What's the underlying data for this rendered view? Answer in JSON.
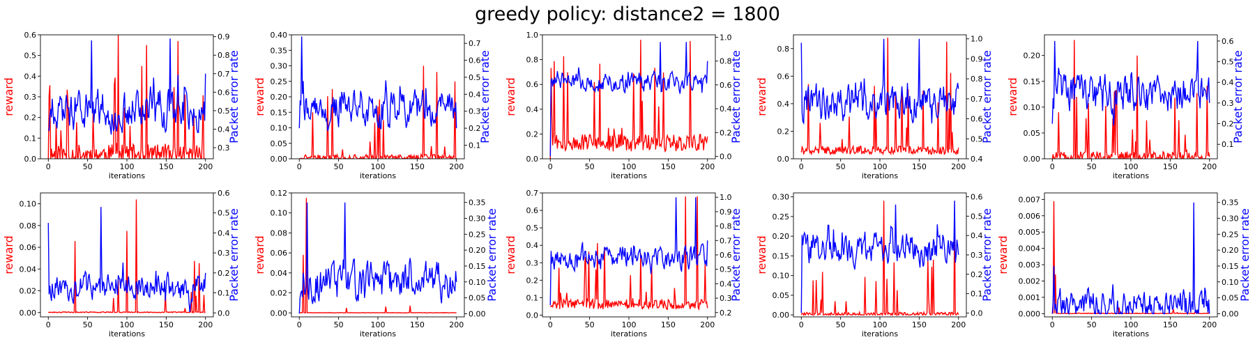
{
  "figure": {
    "title": "greedy policy: distance2 = 1800",
    "reward_color": "#ff0000",
    "per_color": "#0000ff"
  },
  "chart_data": [
    {
      "type": "line",
      "xlabel": "iterations",
      "ylabel_left": "reward",
      "ylabel_right": "Packet error rate",
      "xlim": [
        0,
        200
      ],
      "x_ticks": [
        0,
        50,
        100,
        150,
        200
      ],
      "ylim_left": [
        0,
        0.6
      ],
      "y_ticks_left": [
        0.0,
        0.1,
        0.2,
        0.3,
        0.4,
        0.5,
        0.6
      ],
      "y_tick_labels_left": [
        "0.0",
        "0.1",
        "0.2",
        "0.3",
        "0.4",
        "0.5",
        "0.6"
      ],
      "ylim_right": [
        0.24,
        0.91
      ],
      "y_ticks_right": [
        0.3,
        0.4,
        0.5,
        0.6,
        0.7,
        0.8,
        0.9
      ],
      "y_tick_labels_right": [
        "0.3",
        "0.4",
        "0.5",
        "0.6",
        "0.7",
        "0.8",
        "0.9"
      ],
      "reward": {
        "seed": 11,
        "base": 0.0,
        "noise": 0.1,
        "spike_prob": 0.1,
        "spike_max": 0.42,
        "max": 0.6,
        "peaks": [
          [
            89,
            0.6
          ],
          [
            125,
            0.55
          ],
          [
            165,
            0.57
          ]
        ]
      },
      "per": {
        "seed": 12,
        "base": 0.5,
        "noise": 0.16,
        "min": 0.24,
        "max": 0.9,
        "peaks": [
          [
            55,
            0.88
          ],
          [
            155,
            0.89
          ]
        ],
        "start": 0.4,
        "end": 0.7
      }
    },
    {
      "type": "line",
      "xlabel": "iterations",
      "ylabel_left": "reward",
      "ylabel_right": "Packet error rate",
      "xlim": [
        0,
        200
      ],
      "x_ticks": [
        0,
        50,
        100,
        150,
        200
      ],
      "ylim_left": [
        0,
        0.4
      ],
      "y_ticks_left": [
        0.0,
        0.05,
        0.1,
        0.15,
        0.2,
        0.25,
        0.3,
        0.35,
        0.4
      ],
      "y_tick_labels_left": [
        "0.00",
        "0.05",
        "0.10",
        "0.15",
        "0.20",
        "0.25",
        "0.30",
        "0.35",
        "0.40"
      ],
      "ylim_right": [
        0.02,
        0.75
      ],
      "y_ticks_right": [
        0.1,
        0.2,
        0.3,
        0.4,
        0.5,
        0.6,
        0.7
      ],
      "y_tick_labels_right": [
        "0.1",
        "0.2",
        "0.3",
        "0.4",
        "0.5",
        "0.6",
        "0.7"
      ],
      "reward": {
        "seed": 21,
        "base": 0.0,
        "noise": 0.02,
        "spike_prob": 0.08,
        "spike_max": 0.25,
        "max": 0.4,
        "peaks": [
          [
            158,
            0.3
          ],
          [
            175,
            0.28
          ]
        ]
      },
      "per": {
        "seed": 22,
        "base": 0.32,
        "noise": 0.15,
        "min": 0.02,
        "max": 0.75,
        "peaks": [
          [
            3,
            0.74
          ]
        ],
        "start": 0.2,
        "end": 0.2
      }
    },
    {
      "type": "line",
      "xlabel": "iterations",
      "ylabel_left": "reward",
      "ylabel_right": "Packet error rate",
      "xlim": [
        0,
        200
      ],
      "x_ticks": [
        0,
        50,
        100,
        150,
        200
      ],
      "ylim_left": [
        0,
        1.0
      ],
      "y_ticks_left": [
        0.0,
        0.2,
        0.4,
        0.6,
        0.8,
        1.0
      ],
      "y_tick_labels_left": [
        "0.0",
        "0.2",
        "0.4",
        "0.6",
        "0.8",
        "1.0"
      ],
      "ylim_right": [
        -0.02,
        1.02
      ],
      "y_ticks_right": [
        0.0,
        0.2,
        0.4,
        0.6,
        0.8,
        1.0
      ],
      "y_tick_labels_right": [
        "0.0",
        "0.2",
        "0.4",
        "0.6",
        "0.8",
        "1.0"
      ],
      "reward": {
        "seed": 31,
        "base": 0.1,
        "noise": 0.14,
        "spike_prob": 0.12,
        "spike_max": 0.7,
        "max": 0.96,
        "peaks": [
          [
            115,
            0.96
          ],
          [
            178,
            0.95
          ]
        ],
        "start": 0.0
      },
      "per": {
        "seed": 32,
        "base": 0.62,
        "noise": 0.12,
        "min": 0.0,
        "max": 0.96,
        "peaks": [
          [
            140,
            0.96
          ],
          [
            173,
            0.96
          ]
        ],
        "start": 0.0,
        "end": 0.8
      }
    },
    {
      "type": "line",
      "xlabel": "iterations",
      "ylabel_left": "reward",
      "ylabel_right": "Packet error rate",
      "xlim": [
        0,
        200
      ],
      "x_ticks": [
        0,
        50,
        100,
        150,
        200
      ],
      "ylim_left": [
        0,
        0.9
      ],
      "y_ticks_left": [
        0.0,
        0.2,
        0.4,
        0.6,
        0.8
      ],
      "y_tick_labels_left": [
        "0.0",
        "0.2",
        "0.4",
        "0.6",
        "0.8"
      ],
      "ylim_right": [
        0.4,
        1.02
      ],
      "y_ticks_right": [
        0.4,
        0.5,
        0.6,
        0.7,
        0.8,
        0.9,
        1.0
      ],
      "y_tick_labels_right": [
        "0.4",
        "0.5",
        "0.6",
        "0.7",
        "0.8",
        "0.9",
        "1.0"
      ],
      "reward": {
        "seed": 41,
        "base": 0.05,
        "noise": 0.06,
        "spike_prob": 0.1,
        "spike_max": 0.55,
        "max": 0.88,
        "peaks": [
          [
            110,
            0.88
          ],
          [
            185,
            0.85
          ]
        ]
      },
      "per": {
        "seed": 42,
        "base": 0.68,
        "noise": 0.14,
        "min": 0.45,
        "max": 1.0,
        "peaks": [
          [
            0,
            0.98
          ],
          [
            105,
            1.0
          ],
          [
            150,
            1.0
          ]
        ],
        "start": 0.98,
        "end": 0.75
      }
    },
    {
      "type": "line",
      "xlabel": "iterations",
      "ylabel_left": "reward",
      "ylabel_right": "Packet error rate",
      "xlim": [
        0,
        200
      ],
      "x_ticks": [
        0,
        50,
        100,
        150,
        200
      ],
      "ylim_left": [
        0,
        0.24
      ],
      "y_ticks_left": [
        0.0,
        0.05,
        0.1,
        0.15,
        0.2
      ],
      "y_tick_labels_left": [
        "0.00",
        "0.05",
        "0.10",
        "0.15",
        "0.20"
      ],
      "ylim_right": [
        0.03,
        0.63
      ],
      "y_ticks_right": [
        0.1,
        0.2,
        0.3,
        0.4,
        0.5,
        0.6
      ],
      "y_tick_labels_right": [
        "0.1",
        "0.2",
        "0.3",
        "0.4",
        "0.5",
        "0.6"
      ],
      "reward": {
        "seed": 51,
        "base": 0.0,
        "noise": 0.02,
        "spike_prob": 0.1,
        "spike_max": 0.14,
        "max": 0.24,
        "peaks": [
          [
            28,
            0.23
          ],
          [
            108,
            0.2
          ]
        ]
      },
      "per": {
        "seed": 52,
        "base": 0.35,
        "noise": 0.13,
        "min": 0.05,
        "max": 0.62,
        "peaks": [
          [
            3,
            0.6
          ],
          [
            185,
            0.6
          ]
        ],
        "start": 0.2,
        "end": 0.3
      }
    },
    {
      "type": "line",
      "xlabel": "iterations",
      "ylabel_left": "reward",
      "ylabel_right": "Packet error rate",
      "xlim": [
        0,
        200
      ],
      "x_ticks": [
        0,
        50,
        100,
        150,
        200
      ],
      "ylim_left": [
        -0.004,
        0.11
      ],
      "y_ticks_left": [
        0.0,
        0.02,
        0.04,
        0.06,
        0.08,
        0.1
      ],
      "y_tick_labels_left": [
        "0.00",
        "0.02",
        "0.04",
        "0.06",
        "0.08",
        "0.10"
      ],
      "ylim_right": [
        -0.02,
        0.6
      ],
      "y_ticks_right": [
        0.0,
        0.1,
        0.2,
        0.3,
        0.4,
        0.5,
        0.6
      ],
      "y_tick_labels_right": [
        "0.0",
        "0.1",
        "0.2",
        "0.3",
        "0.4",
        "0.5",
        "0.6"
      ],
      "reward": {
        "seed": 61,
        "base": 0.0,
        "noise": 0.001,
        "spike_prob": 0.06,
        "spike_max": 0.07,
        "max": 0.105,
        "peaks": [
          [
            112,
            0.104
          ],
          [
            100,
            0.075
          ]
        ]
      },
      "per": {
        "seed": 62,
        "base": 0.13,
        "noise": 0.1,
        "min": 0.0,
        "max": 0.55,
        "peaks": [
          [
            0,
            0.45
          ],
          [
            67,
            0.53
          ]
        ],
        "start": 0.45,
        "end": 0.2
      }
    },
    {
      "type": "line",
      "xlabel": "iterations",
      "ylabel_left": "reward",
      "ylabel_right": "Packet error rate",
      "xlim": [
        0,
        200
      ],
      "x_ticks": [
        0,
        50,
        100,
        150,
        200
      ],
      "ylim_left": [
        -0.004,
        0.12
      ],
      "y_ticks_left": [
        0.0,
        0.02,
        0.04,
        0.06,
        0.08,
        0.1,
        0.12
      ],
      "y_tick_labels_left": [
        "0.00",
        "0.02",
        "0.04",
        "0.06",
        "0.08",
        "0.10",
        "0.12"
      ],
      "ylim_right": [
        -0.01,
        0.38
      ],
      "y_ticks_right": [
        0.0,
        0.05,
        0.1,
        0.15,
        0.2,
        0.25,
        0.3,
        0.35
      ],
      "y_tick_labels_right": [
        "0.00",
        "0.05",
        "0.10",
        "0.15",
        "0.20",
        "0.25",
        "0.30",
        "0.35"
      ],
      "reward": {
        "seed": 71,
        "base": 0.0,
        "noise": 0.0005,
        "spike_prob": 0.01,
        "spike_max": 0.01,
        "max": 0.12,
        "peaks": [
          [
            9,
            0.115
          ],
          [
            5,
            0.058
          ],
          [
            60,
            0.005
          ]
        ]
      },
      "per": {
        "seed": 72,
        "base": 0.1,
        "noise": 0.09,
        "min": 0.0,
        "max": 0.36,
        "peaks": [
          [
            10,
            0.35
          ],
          [
            58,
            0.35
          ]
        ],
        "start": 0.0,
        "end": 0.1
      }
    },
    {
      "type": "line",
      "xlabel": "iterations",
      "ylabel_left": "reward",
      "ylabel_right": "Packet error rate",
      "xlim": [
        0,
        200
      ],
      "x_ticks": [
        0,
        50,
        100,
        150,
        200
      ],
      "ylim_left": [
        -0.01,
        0.7
      ],
      "y_ticks_left": [
        0.0,
        0.1,
        0.2,
        0.3,
        0.4,
        0.5,
        0.6,
        0.7
      ],
      "y_tick_labels_left": [
        "0.0",
        "0.1",
        "0.2",
        "0.3",
        "0.4",
        "0.5",
        "0.6",
        "0.7"
      ],
      "ylim_right": [
        0.17,
        1.03
      ],
      "y_ticks_right": [
        0.2,
        0.3,
        0.4,
        0.5,
        0.6,
        0.7,
        0.8,
        0.9,
        1.0
      ],
      "y_tick_labels_right": [
        "0.2",
        "0.3",
        "0.4",
        "0.5",
        "0.6",
        "0.7",
        "0.8",
        "0.9",
        "1.0"
      ],
      "reward": {
        "seed": 81,
        "base": 0.05,
        "noise": 0.06,
        "spike_prob": 0.12,
        "spike_max": 0.38,
        "max": 0.68,
        "peaks": [
          [
            172,
            0.68
          ],
          [
            187,
            0.68
          ]
        ]
      },
      "per": {
        "seed": 82,
        "base": 0.58,
        "noise": 0.12,
        "min": 0.25,
        "max": 1.0,
        "peaks": [
          [
            160,
            1.0
          ],
          [
            185,
            1.0
          ]
        ],
        "start": 0.25,
        "end": 0.7
      }
    },
    {
      "type": "line",
      "xlabel": "iterations",
      "ylabel_left": "reward",
      "ylabel_right": "Packet error rate",
      "xlim": [
        0,
        200
      ],
      "x_ticks": [
        0,
        50,
        100,
        150,
        200
      ],
      "ylim_left": [
        -0.005,
        0.31
      ],
      "y_ticks_left": [
        0.0,
        0.05,
        0.1,
        0.15,
        0.2,
        0.25,
        0.3
      ],
      "y_tick_labels_left": [
        "0.00",
        "0.05",
        "0.10",
        "0.15",
        "0.20",
        "0.25",
        "0.30"
      ],
      "ylim_right": [
        -0.02,
        0.62
      ],
      "y_ticks_right": [
        0.0,
        0.1,
        0.2,
        0.3,
        0.4,
        0.5,
        0.6
      ],
      "y_tick_labels_right": [
        "0.0",
        "0.1",
        "0.2",
        "0.3",
        "0.4",
        "0.5",
        "0.6"
      ],
      "reward": {
        "seed": 91,
        "base": 0.0,
        "noise": 0.01,
        "spike_prob": 0.08,
        "spike_max": 0.16,
        "max": 0.3,
        "peaks": [
          [
            105,
            0.29
          ],
          [
            195,
            0.25
          ]
        ]
      },
      "per": {
        "seed": 92,
        "base": 0.33,
        "noise": 0.13,
        "min": 0.0,
        "max": 0.58,
        "peaks": [
          [
            195,
            0.58
          ],
          [
            120,
            0.56
          ]
        ],
        "start": 0.0,
        "end": 0.3
      }
    },
    {
      "type": "line",
      "xlabel": "iterations",
      "ylabel_left": "reward",
      "ylabel_right": "Packet error rate",
      "xlim": [
        0,
        200
      ],
      "x_ticks": [
        0,
        50,
        100,
        150,
        200
      ],
      "ylim_left": [
        -0.0002,
        0.0074
      ],
      "y_ticks_left": [
        0.0,
        0.001,
        0.002,
        0.003,
        0.004,
        0.005,
        0.006,
        0.007
      ],
      "y_tick_labels_left": [
        "0.000",
        "0.001",
        "0.002",
        "0.003",
        "0.004",
        "0.005",
        "0.006",
        "0.007"
      ],
      "ylim_right": [
        -0.01,
        0.38
      ],
      "y_ticks_right": [
        0.0,
        0.05,
        0.1,
        0.15,
        0.2,
        0.25,
        0.3,
        0.35
      ],
      "y_tick_labels_right": [
        "0.00",
        "0.05",
        "0.10",
        "0.15",
        "0.20",
        "0.25",
        "0.30",
        "0.35"
      ],
      "reward": {
        "seed": 101,
        "base": 0.0,
        "noise": 5e-05,
        "spike_prob": 0.02,
        "spike_max": 0.0004,
        "max": 0.0072,
        "peaks": [
          [
            2,
            0.0069
          ],
          [
            4,
            0.0024
          ]
        ]
      },
      "per": {
        "seed": 102,
        "base": 0.03,
        "noise": 0.07,
        "min": 0.0,
        "max": 0.36,
        "peaks": [
          [
            180,
            0.35
          ],
          [
            2,
            0.15
          ]
        ],
        "start": 0.0,
        "end": 0.0
      }
    }
  ]
}
